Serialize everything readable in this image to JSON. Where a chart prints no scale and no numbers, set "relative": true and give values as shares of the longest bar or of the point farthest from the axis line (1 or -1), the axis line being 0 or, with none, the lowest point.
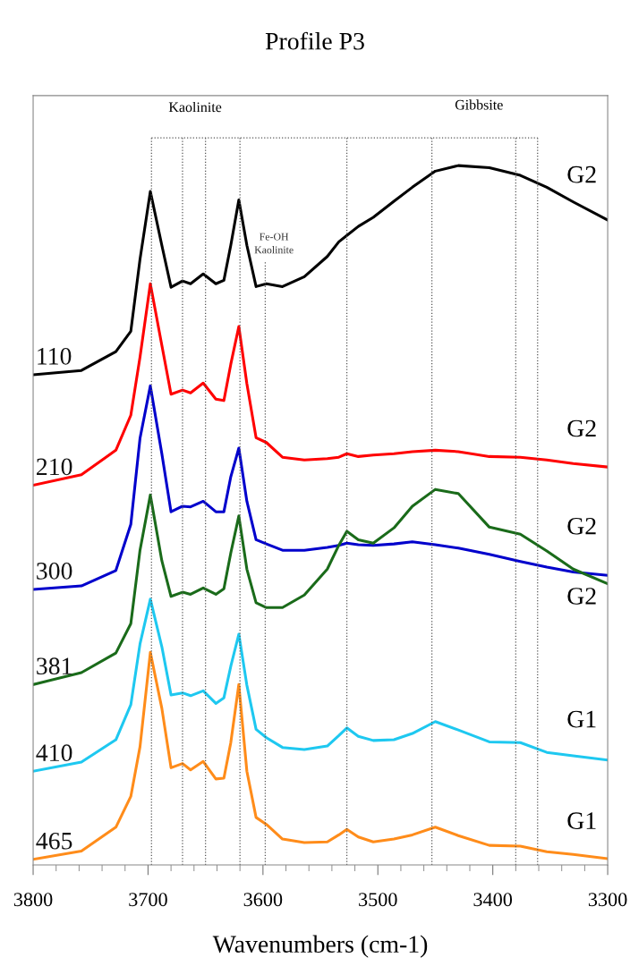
{
  "chart_data": {
    "type": "line",
    "title": "Profile P3",
    "xlabel": "Wavenumbers (cm-1)",
    "relative": true,
    "tick_labels": "x",
    "line_style": "solid",
    "xlim": [
      3800,
      3300
    ],
    "xticks": [
      3800,
      {
        "value": 3780,
        "label": null
      },
      {
        "value": 3760,
        "label": null
      },
      {
        "value": 3740,
        "label": null
      },
      {
        "value": 3720,
        "label": null
      },
      3700,
      {
        "value": 3680,
        "label": null
      },
      {
        "value": 3660,
        "label": null
      },
      {
        "value": 3640,
        "label": null
      },
      {
        "value": 3620,
        "label": null
      },
      3600,
      {
        "value": 3580,
        "label": null
      },
      {
        "value": 3560,
        "label": null
      },
      {
        "value": 3540,
        "label": null
      },
      {
        "value": 3520,
        "label": null
      },
      3500,
      {
        "value": 3480,
        "label": null
      },
      {
        "value": 3460,
        "label": null
      },
      {
        "value": 3440,
        "label": null
      },
      {
        "value": 3420,
        "label": null
      },
      3400,
      {
        "value": 3380,
        "label": null
      },
      {
        "value": 3360,
        "label": null
      },
      {
        "value": 3340,
        "label": null
      },
      {
        "value": 3320,
        "label": null
      },
      3300
    ],
    "x": [
      3800,
      3758,
      3728,
      3715,
      3707,
      3698,
      3688,
      3680,
      3670,
      3663,
      3652,
      3641,
      3634,
      3628,
      3621,
      3614,
      3606,
      3597,
      3583,
      3564,
      3544,
      3534,
      3527,
      3517,
      3504,
      3486,
      3470,
      3450,
      3430,
      3403,
      3376,
      3353,
      3330,
      3300
    ],
    "series": [
      {
        "name": "110",
        "color": "#000000",
        "values": [
          0.701,
          0.707,
          0.734,
          0.763,
          0.866,
          0.963,
          0.886,
          0.826,
          0.835,
          0.831,
          0.845,
          0.831,
          0.836,
          0.886,
          0.951,
          0.886,
          0.827,
          0.831,
          0.827,
          0.841,
          0.87,
          0.891,
          0.9,
          0.913,
          0.926,
          0.949,
          0.969,
          0.992,
          1.0,
          0.997,
          0.986,
          0.969,
          0.948,
          0.922
        ]
      },
      {
        "name": "210",
        "color": "#ff0000",
        "values": [
          0.543,
          0.558,
          0.593,
          0.643,
          0.726,
          0.831,
          0.743,
          0.673,
          0.679,
          0.675,
          0.689,
          0.666,
          0.664,
          0.716,
          0.77,
          0.688,
          0.611,
          0.604,
          0.583,
          0.579,
          0.581,
          0.583,
          0.588,
          0.584,
          0.586,
          0.588,
          0.591,
          0.593,
          0.591,
          0.584,
          0.583,
          0.579,
          0.574,
          0.569
        ]
      },
      {
        "name": "300",
        "color": "#0000cc",
        "values": [
          0.394,
          0.399,
          0.421,
          0.487,
          0.61,
          0.685,
          0.588,
          0.505,
          0.513,
          0.512,
          0.52,
          0.505,
          0.505,
          0.555,
          0.596,
          0.52,
          0.465,
          0.459,
          0.45,
          0.45,
          0.454,
          0.457,
          0.46,
          0.458,
          0.457,
          0.459,
          0.462,
          0.458,
          0.453,
          0.444,
          0.434,
          0.426,
          0.419,
          0.414
        ]
      },
      {
        "name": "381",
        "color": "#1a6b1a",
        "values": [
          0.258,
          0.275,
          0.303,
          0.345,
          0.45,
          0.529,
          0.435,
          0.384,
          0.39,
          0.387,
          0.396,
          0.387,
          0.395,
          0.446,
          0.499,
          0.423,
          0.375,
          0.368,
          0.368,
          0.386,
          0.423,
          0.457,
          0.477,
          0.465,
          0.46,
          0.482,
          0.513,
          0.537,
          0.531,
          0.483,
          0.473,
          0.449,
          0.423,
          0.402
        ]
      },
      {
        "name": "410",
        "color": "#1ec8f0",
        "values": [
          0.134,
          0.147,
          0.179,
          0.229,
          0.316,
          0.38,
          0.312,
          0.243,
          0.246,
          0.242,
          0.249,
          0.231,
          0.239,
          0.284,
          0.33,
          0.257,
          0.194,
          0.182,
          0.168,
          0.165,
          0.17,
          0.185,
          0.196,
          0.184,
          0.178,
          0.179,
          0.188,
          0.205,
          0.193,
          0.176,
          0.175,
          0.161,
          0.156,
          0.15
        ]
      },
      {
        "name": "465",
        "color": "#ff8c1a",
        "values": [
          0.008,
          0.02,
          0.054,
          0.098,
          0.169,
          0.304,
          0.224,
          0.139,
          0.145,
          0.136,
          0.148,
          0.123,
          0.124,
          0.175,
          0.258,
          0.134,
          0.068,
          0.058,
          0.037,
          0.032,
          0.033,
          0.043,
          0.051,
          0.04,
          0.033,
          0.037,
          0.043,
          0.054,
          0.042,
          0.028,
          0.027,
          0.019,
          0.015,
          0.009
        ]
      }
    ],
    "ref_lines": [
      {
        "axis": "x",
        "value": 3697,
        "color": "#555555",
        "line_style": "dotted"
      },
      {
        "axis": "x",
        "value": 3670,
        "color": "#555555",
        "line_style": "dotted"
      },
      {
        "axis": "x",
        "value": 3650,
        "color": "#555555",
        "line_style": "dotted"
      },
      {
        "axis": "x",
        "value": 3620,
        "color": "#555555",
        "line_style": "dotted"
      },
      {
        "axis": "x",
        "value": 3598,
        "label": "Fe-OH\nKaolinite",
        "color": "#555555",
        "line_style": "dotted"
      },
      {
        "axis": "x",
        "value": 3527,
        "color": "#555555",
        "line_style": "dotted"
      },
      {
        "axis": "x",
        "value": 3453,
        "color": "#555555",
        "line_style": "dotted"
      },
      {
        "axis": "x",
        "value": 3380,
        "color": "#555555",
        "line_style": "dotted"
      },
      {
        "axis": "x",
        "value": 3361,
        "color": "#555555",
        "line_style": "dotted"
      }
    ],
    "annotations": [
      "Kaolinite",
      "Gibbsite",
      "G2",
      "G2",
      "G2",
      "G2",
      "G1",
      "G1"
    ]
  }
}
